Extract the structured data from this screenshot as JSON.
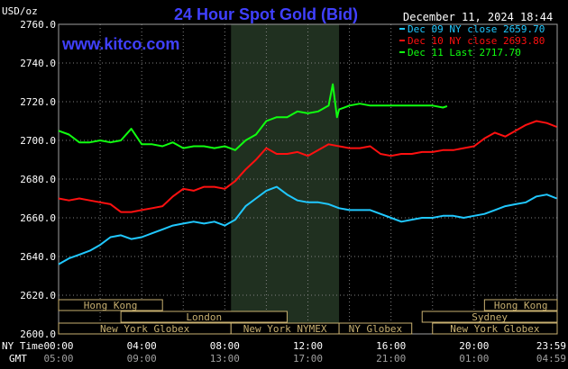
{
  "title": "24 Hour Spot Gold (Bid)",
  "unit": "USD/oz",
  "site": "www.kitco.com",
  "date": "December 11, 2024 18:44",
  "colors": {
    "background": "#000000",
    "grid": "#808080",
    "title": "#4040ff",
    "dec09": "#20c8ff",
    "dec10": "#ff1010",
    "dec11": "#10ff10",
    "nymex_band": "#203020",
    "session_border": "#c8b070",
    "session_text": "#c8b070"
  },
  "legend": [
    {
      "label": "Dec 09 NY close 2659.70",
      "color": "#20c8ff"
    },
    {
      "label": "Dec 10 NY close 2693.80",
      "color": "#ff1010"
    },
    {
      "label": "Dec 11 Last 2717.70",
      "color": "#10ff10"
    }
  ],
  "time_labels": {
    "ny_prefix": "NY Time",
    "gmt_prefix": "GMT",
    "ny": [
      "00:00",
      "04:00",
      "08:00",
      "12:00",
      "16:00",
      "20:00",
      "23:59"
    ],
    "gmt": [
      "05:00",
      "09:00",
      "13:00",
      "17:00",
      "21:00",
      "01:00",
      "04:59"
    ]
  },
  "sessions": [
    {
      "label": "Hong Kong",
      "row": 0,
      "start": 0,
      "end": 5
    },
    {
      "label": "Hong Kong",
      "row": 0,
      "start": 20.5,
      "end": 24
    },
    {
      "label": "London",
      "row": 1,
      "start": 3,
      "end": 11
    },
    {
      "label": "Sydney",
      "row": 1,
      "start": 17.5,
      "end": 24
    },
    {
      "label": "New York Globex",
      "row": 2,
      "start": 0,
      "end": 8.3
    },
    {
      "label": "New York NYMEX",
      "row": 2,
      "start": 8.3,
      "end": 13.5
    },
    {
      "label": "NY Globex",
      "row": 2,
      "start": 13.5,
      "end": 17
    },
    {
      "label": "New York Globex",
      "row": 2,
      "start": 18,
      "end": 24
    }
  ],
  "chart_data": {
    "type": "line",
    "title": "24 Hour Spot Gold (Bid)",
    "ylabel": "USD/oz",
    "xlabel": "",
    "xlim": [
      0,
      24
    ],
    "ylim": [
      2600,
      2760
    ],
    "yticks": [
      "2600.0",
      "2620.0",
      "2640.0",
      "2660.0",
      "2680.0",
      "2700.0",
      "2720.0",
      "2740.0",
      "2760.0"
    ],
    "nymex_hours": [
      8.3,
      13.5
    ],
    "grid": true,
    "legend_position": "top-right",
    "series": [
      {
        "name": "Dec 09 NY close 2659.70",
        "color": "#20c8ff",
        "x": [
          0,
          0.5,
          1,
          1.5,
          2,
          2.5,
          3,
          3.5,
          4,
          4.5,
          5,
          5.5,
          6,
          6.5,
          7,
          7.5,
          8,
          8.5,
          9,
          9.5,
          10,
          10.5,
          11,
          11.5,
          12,
          12.5,
          13,
          13.5,
          14,
          14.5,
          15,
          15.5,
          16,
          16.5,
          17,
          17.5,
          18,
          18.5,
          19,
          19.5,
          20,
          20.5,
          21,
          21.5,
          22,
          22.5,
          23,
          23.5,
          23.98
        ],
        "y": [
          2636,
          2639,
          2641,
          2643,
          2646,
          2650,
          2651,
          2649,
          2650,
          2652,
          2654,
          2656,
          2657,
          2658,
          2657,
          2658,
          2656,
          2659,
          2666,
          2670,
          2674,
          2676,
          2672,
          2669,
          2668,
          2668,
          2667,
          2665,
          2664,
          2664,
          2664,
          2662,
          2660,
          2658,
          2659,
          2660,
          2660,
          2661,
          2661,
          2660,
          2661,
          2662,
          2664,
          2666,
          2667,
          2668,
          2671,
          2672,
          2670
        ]
      },
      {
        "name": "Dec 10 NY close 2693.80",
        "color": "#ff1010",
        "x": [
          0,
          0.5,
          1,
          1.5,
          2,
          2.5,
          3,
          3.5,
          4,
          4.5,
          5,
          5.5,
          6,
          6.5,
          7,
          7.5,
          8,
          8.5,
          9,
          9.5,
          10,
          10.5,
          11,
          11.5,
          12,
          12.5,
          13,
          13.5,
          14,
          14.5,
          15,
          15.5,
          16,
          16.5,
          17,
          17.5,
          18,
          18.5,
          19,
          19.5,
          20,
          20.5,
          21,
          21.5,
          22,
          22.5,
          23,
          23.5,
          23.98
        ],
        "y": [
          2670,
          2669,
          2670,
          2669,
          2668,
          2667,
          2663,
          2663,
          2664,
          2665,
          2666,
          2671,
          2675,
          2674,
          2676,
          2676,
          2675,
          2679,
          2685,
          2690,
          2696,
          2693,
          2693,
          2694,
          2692,
          2695,
          2698,
          2697,
          2696,
          2696,
          2697,
          2693,
          2692,
          2693,
          2693,
          2694,
          2694,
          2695,
          2695,
          2696,
          2697,
          2701,
          2704,
          2702,
          2705,
          2708,
          2710,
          2709,
          2707
        ]
      },
      {
        "name": "Dec 11 Last 2717.70",
        "color": "#10ff10",
        "x": [
          0,
          0.5,
          1,
          1.5,
          2,
          2.5,
          3,
          3.5,
          4,
          4.5,
          5,
          5.5,
          6,
          6.5,
          7,
          7.5,
          8,
          8.5,
          9,
          9.5,
          10,
          10.5,
          11,
          11.5,
          12,
          12.5,
          13,
          13.2,
          13.4,
          13.5,
          14,
          14.5,
          15,
          15.5,
          16,
          16.5,
          17,
          17.5,
          18,
          18.5,
          18.7
        ],
        "y": [
          2705,
          2703,
          2699,
          2699,
          2700,
          2699,
          2700,
          2706,
          2698,
          2698,
          2697,
          2699,
          2696,
          2697,
          2697,
          2696,
          2697,
          2695,
          2700,
          2703,
          2710,
          2712,
          2712,
          2715,
          2714,
          2715,
          2718,
          2729,
          2712,
          2716,
          2718,
          2719,
          2718,
          2718,
          2718,
          2718,
          2718,
          2718,
          2718,
          2717,
          2717.7
        ]
      }
    ]
  }
}
